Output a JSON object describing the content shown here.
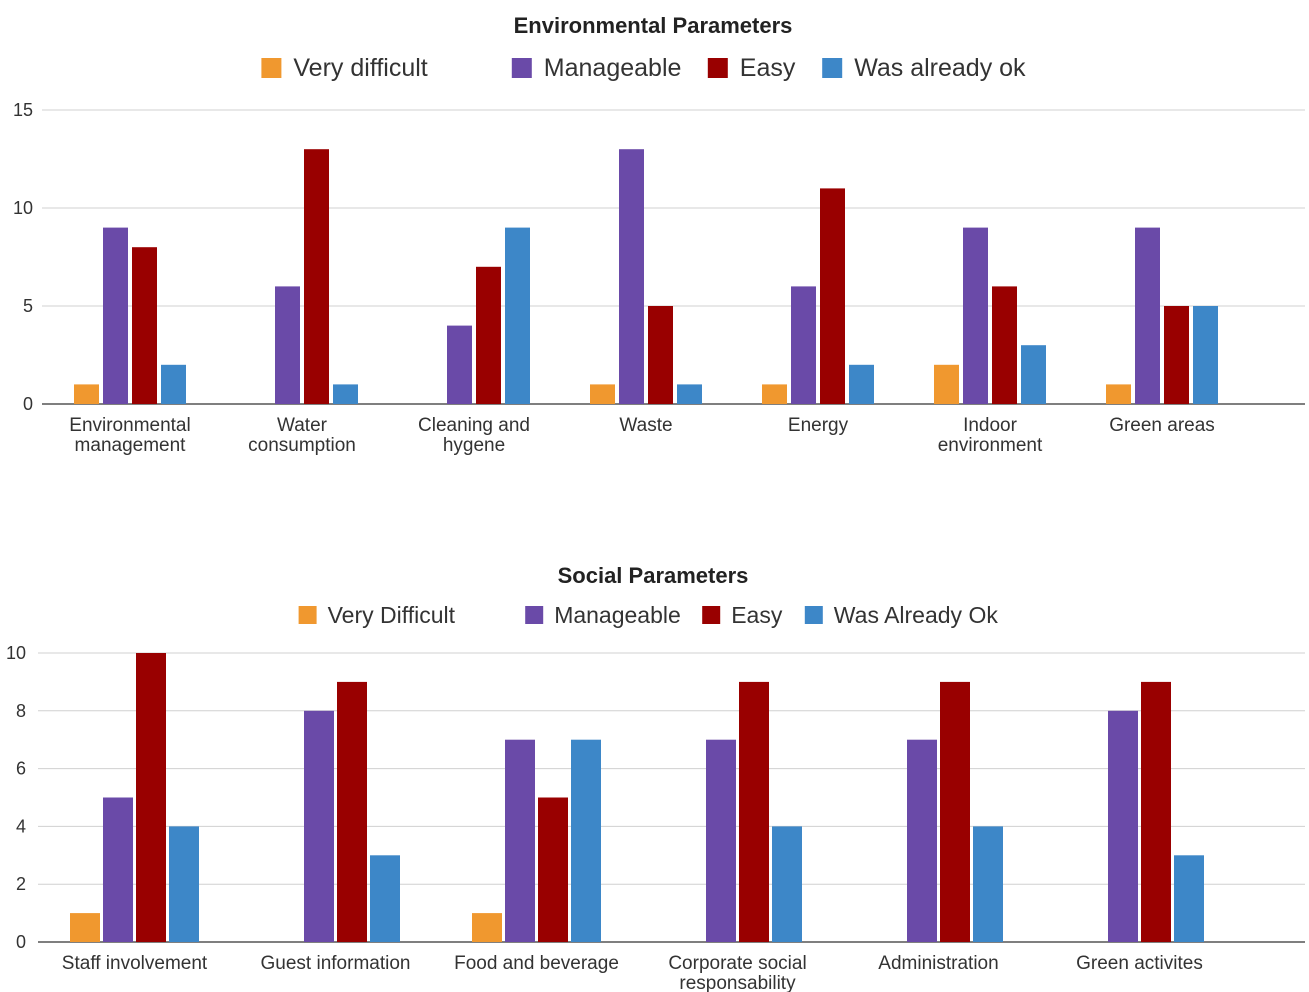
{
  "chart_data": [
    {
      "type": "bar",
      "title": "Environmental Parameters",
      "categories": [
        [
          "Environmental",
          "management"
        ],
        [
          "Water",
          "consumption"
        ],
        [
          "Cleaning and",
          "hygene"
        ],
        [
          "Waste"
        ],
        [
          "Energy"
        ],
        [
          "Indoor",
          "environment"
        ],
        [
          "Green areas"
        ]
      ],
      "series": [
        {
          "name": "Very difficult",
          "color": "#f0982f",
          "values": [
            1,
            0,
            0,
            1,
            1,
            2,
            1
          ]
        },
        {
          "name": "Manageable",
          "color": "#6a4aa8",
          "values": [
            9,
            6,
            4,
            13,
            6,
            9,
            9
          ]
        },
        {
          "name": "Easy",
          "color": "#990000",
          "values": [
            8,
            13,
            7,
            5,
            11,
            6,
            5
          ]
        },
        {
          "name": "Was already ok",
          "color": "#3d87c8",
          "values": [
            2,
            1,
            9,
            1,
            2,
            3,
            5
          ]
        }
      ],
      "ylim": [
        0,
        15
      ],
      "yticks": [
        0,
        5,
        10,
        15
      ],
      "legend": "top",
      "grid": true
    },
    {
      "type": "bar",
      "title": "Social Parameters",
      "categories": [
        [
          "Staff involvement"
        ],
        [
          "Guest information"
        ],
        [
          "Food and beverage"
        ],
        [
          "Corporate social",
          "responsability"
        ],
        [
          "Administration"
        ],
        [
          "Green activites"
        ]
      ],
      "series": [
        {
          "name": "Very Difficult",
          "color": "#f0982f",
          "values": [
            1,
            0,
            1,
            0,
            0,
            0
          ]
        },
        {
          "name": "Manageable",
          "color": "#6a4aa8",
          "values": [
            5,
            8,
            7,
            7,
            7,
            8
          ]
        },
        {
          "name": "Easy",
          "color": "#990000",
          "values": [
            10,
            9,
            5,
            9,
            9,
            9
          ]
        },
        {
          "name": "Was Already Ok",
          "color": "#3d87c8",
          "values": [
            4,
            3,
            7,
            4,
            4,
            3
          ]
        }
      ],
      "ylim": [
        0,
        10
      ],
      "yticks": [
        0,
        2,
        4,
        6,
        8,
        10
      ],
      "legend": "top",
      "grid": true
    }
  ]
}
